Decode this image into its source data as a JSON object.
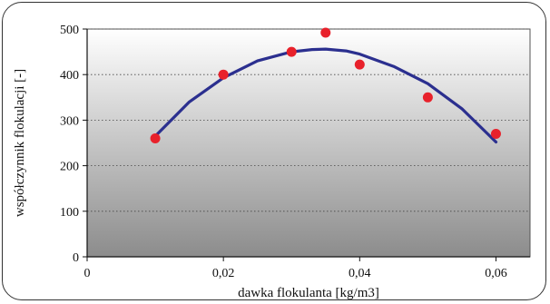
{
  "chart_data": {
    "type": "scatter",
    "title": "",
    "xlabel": "dawka flokulanta [kg/m3]",
    "ylabel": "współczynnik flokulacji [-]",
    "xlim": [
      0,
      0.065
    ],
    "ylim": [
      0,
      500
    ],
    "x_ticks": [
      0,
      0.02,
      0.04,
      0.06
    ],
    "x_tick_labels": [
      "0",
      "0,02",
      "0,04",
      "0,06"
    ],
    "y_ticks": [
      0,
      100,
      200,
      300,
      400,
      500
    ],
    "y_tick_labels": [
      "0",
      "100",
      "200",
      "300",
      "400",
      "500"
    ],
    "grid": "horizontal dotted",
    "series": [
      {
        "kind": "points",
        "color": "#e8212b",
        "x": [
          0.01,
          0.02,
          0.03,
          0.035,
          0.04,
          0.05,
          0.06
        ],
        "y": [
          260,
          400,
          450,
          492,
          422,
          350,
          270
        ]
      },
      {
        "kind": "trend-curve",
        "color": "#2b2f8f",
        "x": [
          0.01,
          0.015,
          0.02,
          0.025,
          0.03,
          0.033,
          0.035,
          0.038,
          0.04,
          0.045,
          0.05,
          0.055,
          0.06
        ],
        "y": [
          265,
          340,
          393,
          430,
          450,
          455,
          456,
          452,
          445,
          418,
          380,
          325,
          252
        ]
      }
    ]
  }
}
